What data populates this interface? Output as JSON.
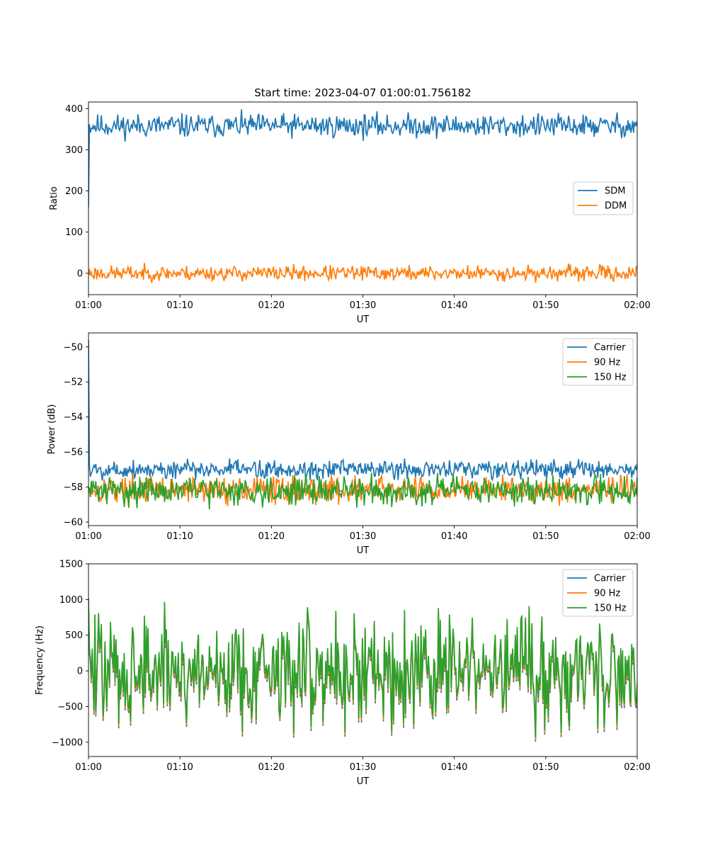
{
  "title": "Start time: 2023-04-07 01:00:01.756182",
  "colors": {
    "c0": "#1f77b4",
    "c1": "#ff7f0e",
    "c2": "#2ca02c"
  },
  "chart_data": [
    {
      "type": "line",
      "title": "Start time: 2023-04-07 01:00:01.756182",
      "xlabel": "UT",
      "ylabel": "Ratio",
      "x_range": [
        "01:00",
        "02:00"
      ],
      "x_ticks": [
        "01:00",
        "01:10",
        "01:20",
        "01:30",
        "01:40",
        "01:50",
        "02:00"
      ],
      "ylim": [
        -52,
        416
      ],
      "y_ticks": [
        400,
        300,
        200,
        100,
        0
      ],
      "legend": "center-right",
      "series": [
        {
          "name": "SDM",
          "color": "#1f77b4",
          "mean": 358,
          "noise": 14,
          "start": 160,
          "seed": 11,
          "points": 600
        },
        {
          "name": "DDM",
          "color": "#ff7f0e",
          "mean": 0,
          "noise": 9,
          "start": -5,
          "seed": 23,
          "points": 600
        }
      ]
    },
    {
      "type": "line",
      "xlabel": "UT",
      "ylabel": "Power (dB)",
      "x_range": [
        "01:00",
        "02:00"
      ],
      "x_ticks": [
        "01:00",
        "01:10",
        "01:20",
        "01:30",
        "01:40",
        "01:50",
        "02:00"
      ],
      "ylim": [
        -60.2,
        -49.2
      ],
      "y_ticks": [
        -50,
        -52,
        -54,
        -56,
        -58,
        -60
      ],
      "legend": "top-right",
      "series": [
        {
          "name": "Carrier",
          "color": "#1f77b4",
          "mean": -57.0,
          "noise": 0.28,
          "start": -49.6,
          "seed": 5,
          "points": 600
        },
        {
          "name": "90 Hz",
          "color": "#ff7f0e",
          "mean": -58.15,
          "noise": 0.38,
          "start": -58.0,
          "seed": 17,
          "points": 600
        },
        {
          "name": "150 Hz",
          "color": "#2ca02c",
          "mean": -58.2,
          "noise": 0.4,
          "start": -58.0,
          "seed": 31,
          "points": 600
        }
      ]
    },
    {
      "type": "line",
      "xlabel": "UT",
      "ylabel": "Frequency (Hz)",
      "x_range": [
        "01:00",
        "02:00"
      ],
      "x_ticks": [
        "01:00",
        "01:10",
        "01:20",
        "01:30",
        "01:40",
        "01:50",
        "02:00"
      ],
      "ylim": [
        -1200,
        1500
      ],
      "y_ticks": [
        1500,
        1000,
        500,
        0,
        -500,
        -1000
      ],
      "legend": "top-right",
      "series": [
        {
          "name": "Carrier",
          "color": "#1f77b4",
          "offset": -40
        },
        {
          "name": "90 Hz",
          "color": "#ff7f0e",
          "offset": -15
        },
        {
          "name": "150 Hz",
          "color": "#2ca02c",
          "offset": 20
        }
      ],
      "base": {
        "mean": 0,
        "noise": 380,
        "start": 1000,
        "seed": 47,
        "points": 600
      }
    }
  ]
}
